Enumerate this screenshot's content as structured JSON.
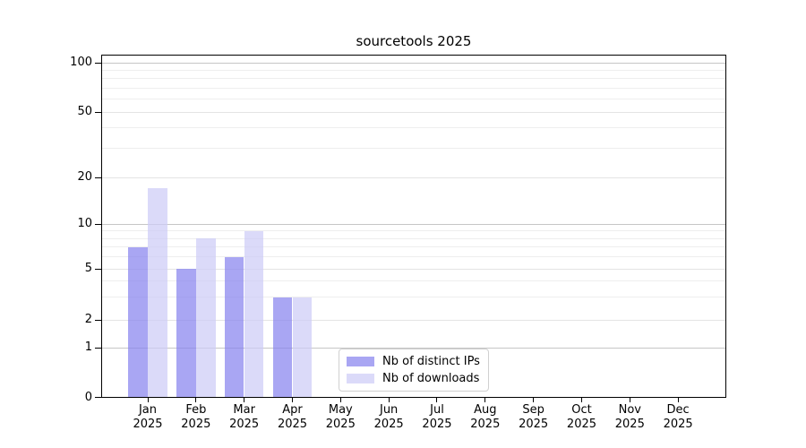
{
  "chart_data": {
    "type": "bar",
    "title": "sourcetools 2025",
    "year": "2025",
    "categories": [
      "Jan",
      "Feb",
      "Mar",
      "Apr",
      "May",
      "Jun",
      "Jul",
      "Aug",
      "Sep",
      "Oct",
      "Nov",
      "Dec"
    ],
    "series": [
      {
        "key": "distinct-ips",
        "name": "Nb of distinct IPs",
        "color": "rgba(136,131,238,0.72)",
        "values": [
          7,
          5,
          6,
          3,
          0,
          0,
          0,
          0,
          0,
          0,
          0,
          0
        ]
      },
      {
        "key": "downloads",
        "name": "Nb of downloads",
        "color": "rgba(205,204,247,0.72)",
        "values": [
          17,
          8,
          9,
          3,
          0,
          0,
          0,
          0,
          0,
          0,
          0,
          0
        ]
      }
    ],
    "y_ticks": [
      0,
      1,
      2,
      5,
      10,
      20,
      50,
      100
    ],
    "y_major_gridlines": [
      1,
      10,
      100
    ],
    "y_minor_gridlines": [
      3,
      4,
      6,
      7,
      8,
      9,
      30,
      40,
      60,
      70,
      80,
      90
    ],
    "yscale": "symlog",
    "ylim": [
      0,
      100
    ],
    "grid": true,
    "legend_position": "lower center",
    "colors": {
      "spine": "#000000",
      "grid_major": "#c6c6c6",
      "grid_minor": "#eeeeee"
    }
  }
}
